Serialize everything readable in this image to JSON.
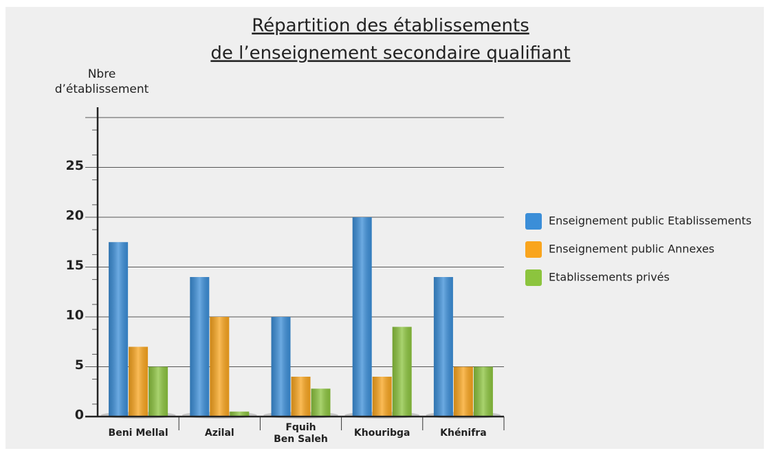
{
  "chart_data": {
    "type": "bar",
    "title": [
      "Répartition des établissements",
      "de l’enseignement secondaire qualifiant"
    ],
    "y_label": [
      "Nbre",
      "d’établissement"
    ],
    "categories": [
      "Beni Mellal",
      "Azilal",
      "Fquih\nBen Saleh",
      "Khouribga",
      "Khénifra"
    ],
    "series": [
      {
        "name": "Enseignement public Etablissements",
        "color": "#3b8ed8",
        "values": [
          17.5,
          14,
          10,
          20,
          14
        ]
      },
      {
        "name": "Enseignement public Annexes",
        "color": "#f9a51e",
        "values": [
          7,
          10,
          4,
          4,
          5
        ]
      },
      {
        "name": "Etablissements privés",
        "color": "#8cc43e",
        "values": [
          5,
          0.5,
          2.8,
          9,
          5
        ]
      }
    ],
    "ylim": [
      0,
      30
    ],
    "yticks": [
      0,
      5,
      10,
      15,
      20,
      25
    ],
    "grid": true,
    "legend": "right"
  }
}
